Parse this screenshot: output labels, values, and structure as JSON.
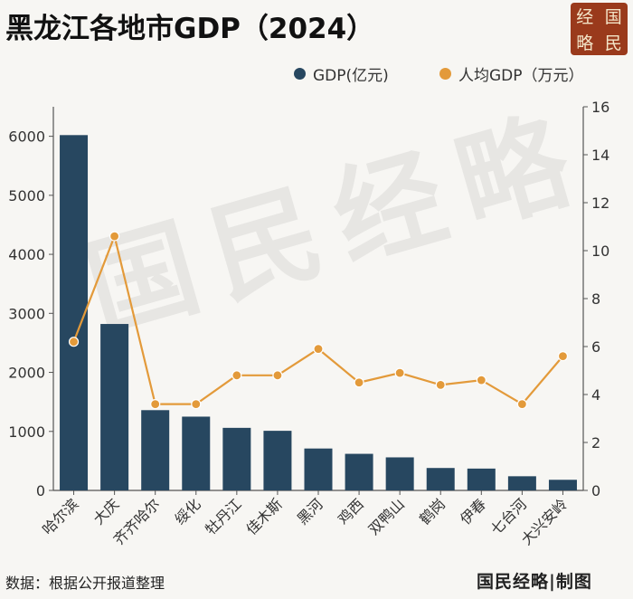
{
  "header": {
    "title": "黑龙江各地市GDP（2024）",
    "logo_chars": [
      "经",
      "国",
      "略",
      "民"
    ]
  },
  "watermark": "国民经略",
  "footer": {
    "source": "数据：根据公开报道整理",
    "credit": "国民经略|制图"
  },
  "colors": {
    "bar": "#274760",
    "line": "#e39a3a",
    "axis": "#555555"
  },
  "chart_data": {
    "type": "bar",
    "title": "黑龙江各地市GDP（2024）",
    "legend_position": "top-right",
    "grid": false,
    "categories": [
      "哈尔滨",
      "大庆",
      "齐齐哈尔",
      "绥化",
      "牡丹江",
      "佳木斯",
      "黑河",
      "鸡西",
      "双鸭山",
      "鹤岗",
      "伊春",
      "七台河",
      "大兴安岭"
    ],
    "series": [
      {
        "name": "GDP(亿元)",
        "type": "bar",
        "axis": "left",
        "values": [
          6020,
          2820,
          1360,
          1250,
          1060,
          1010,
          710,
          620,
          560,
          380,
          370,
          240,
          180
        ]
      },
      {
        "name": "人均GDP（万元）",
        "type": "line",
        "axis": "right",
        "values": [
          6.2,
          10.6,
          3.6,
          3.6,
          4.8,
          4.8,
          5.9,
          4.5,
          4.9,
          4.4,
          4.6,
          3.6,
          5.6
        ]
      }
    ],
    "y_left": {
      "lim": [
        0,
        6500
      ],
      "ticks": [
        0,
        1000,
        2000,
        3000,
        4000,
        5000,
        6000
      ]
    },
    "y_right": {
      "lim": [
        0,
        16
      ],
      "ticks": [
        0,
        2,
        4,
        6,
        8,
        10,
        12,
        14,
        16
      ]
    }
  }
}
